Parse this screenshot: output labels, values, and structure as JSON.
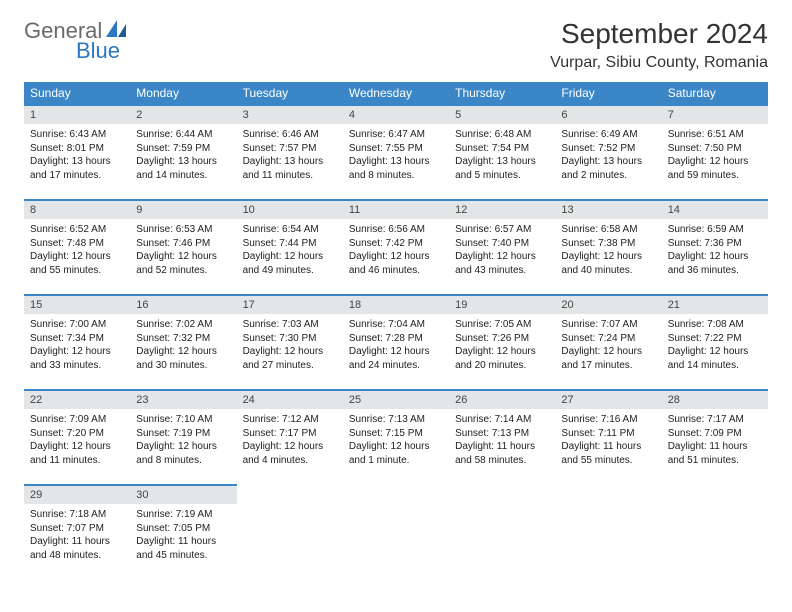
{
  "logo": {
    "text1": "General",
    "text2": "Blue",
    "color_general": "#6a6a6a",
    "color_blue": "#2a78c2"
  },
  "header": {
    "month_title": "September 2024",
    "location": "Vurpar, Sibiu County, Romania"
  },
  "style": {
    "header_bg": "#3b86c6",
    "daynum_bg": "#e3e5e7",
    "page_bg": "#ffffff",
    "border_top": "#3b86c6",
    "title_fontsize": 28,
    "location_fontsize": 16,
    "dayheader_fontsize": 12,
    "cell_fontsize": 10
  },
  "day_names": [
    "Sunday",
    "Monday",
    "Tuesday",
    "Wednesday",
    "Thursday",
    "Friday",
    "Saturday"
  ],
  "weeks": [
    [
      {
        "day": "1",
        "sunrise": "6:43 AM",
        "sunset": "8:01 PM",
        "daylight": "13 hours and 17 minutes."
      },
      {
        "day": "2",
        "sunrise": "6:44 AM",
        "sunset": "7:59 PM",
        "daylight": "13 hours and 14 minutes."
      },
      {
        "day": "3",
        "sunrise": "6:46 AM",
        "sunset": "7:57 PM",
        "daylight": "13 hours and 11 minutes."
      },
      {
        "day": "4",
        "sunrise": "6:47 AM",
        "sunset": "7:55 PM",
        "daylight": "13 hours and 8 minutes."
      },
      {
        "day": "5",
        "sunrise": "6:48 AM",
        "sunset": "7:54 PM",
        "daylight": "13 hours and 5 minutes."
      },
      {
        "day": "6",
        "sunrise": "6:49 AM",
        "sunset": "7:52 PM",
        "daylight": "13 hours and 2 minutes."
      },
      {
        "day": "7",
        "sunrise": "6:51 AM",
        "sunset": "7:50 PM",
        "daylight": "12 hours and 59 minutes."
      }
    ],
    [
      {
        "day": "8",
        "sunrise": "6:52 AM",
        "sunset": "7:48 PM",
        "daylight": "12 hours and 55 minutes."
      },
      {
        "day": "9",
        "sunrise": "6:53 AM",
        "sunset": "7:46 PM",
        "daylight": "12 hours and 52 minutes."
      },
      {
        "day": "10",
        "sunrise": "6:54 AM",
        "sunset": "7:44 PM",
        "daylight": "12 hours and 49 minutes."
      },
      {
        "day": "11",
        "sunrise": "6:56 AM",
        "sunset": "7:42 PM",
        "daylight": "12 hours and 46 minutes."
      },
      {
        "day": "12",
        "sunrise": "6:57 AM",
        "sunset": "7:40 PM",
        "daylight": "12 hours and 43 minutes."
      },
      {
        "day": "13",
        "sunrise": "6:58 AM",
        "sunset": "7:38 PM",
        "daylight": "12 hours and 40 minutes."
      },
      {
        "day": "14",
        "sunrise": "6:59 AM",
        "sunset": "7:36 PM",
        "daylight": "12 hours and 36 minutes."
      }
    ],
    [
      {
        "day": "15",
        "sunrise": "7:00 AM",
        "sunset": "7:34 PM",
        "daylight": "12 hours and 33 minutes."
      },
      {
        "day": "16",
        "sunrise": "7:02 AM",
        "sunset": "7:32 PM",
        "daylight": "12 hours and 30 minutes."
      },
      {
        "day": "17",
        "sunrise": "7:03 AM",
        "sunset": "7:30 PM",
        "daylight": "12 hours and 27 minutes."
      },
      {
        "day": "18",
        "sunrise": "7:04 AM",
        "sunset": "7:28 PM",
        "daylight": "12 hours and 24 minutes."
      },
      {
        "day": "19",
        "sunrise": "7:05 AM",
        "sunset": "7:26 PM",
        "daylight": "12 hours and 20 minutes."
      },
      {
        "day": "20",
        "sunrise": "7:07 AM",
        "sunset": "7:24 PM",
        "daylight": "12 hours and 17 minutes."
      },
      {
        "day": "21",
        "sunrise": "7:08 AM",
        "sunset": "7:22 PM",
        "daylight": "12 hours and 14 minutes."
      }
    ],
    [
      {
        "day": "22",
        "sunrise": "7:09 AM",
        "sunset": "7:20 PM",
        "daylight": "12 hours and 11 minutes."
      },
      {
        "day": "23",
        "sunrise": "7:10 AM",
        "sunset": "7:19 PM",
        "daylight": "12 hours and 8 minutes."
      },
      {
        "day": "24",
        "sunrise": "7:12 AM",
        "sunset": "7:17 PM",
        "daylight": "12 hours and 4 minutes."
      },
      {
        "day": "25",
        "sunrise": "7:13 AM",
        "sunset": "7:15 PM",
        "daylight": "12 hours and 1 minute."
      },
      {
        "day": "26",
        "sunrise": "7:14 AM",
        "sunset": "7:13 PM",
        "daylight": "11 hours and 58 minutes."
      },
      {
        "day": "27",
        "sunrise": "7:16 AM",
        "sunset": "7:11 PM",
        "daylight": "11 hours and 55 minutes."
      },
      {
        "day": "28",
        "sunrise": "7:17 AM",
        "sunset": "7:09 PM",
        "daylight": "11 hours and 51 minutes."
      }
    ],
    [
      {
        "day": "29",
        "sunrise": "7:18 AM",
        "sunset": "7:07 PM",
        "daylight": "11 hours and 48 minutes."
      },
      {
        "day": "30",
        "sunrise": "7:19 AM",
        "sunset": "7:05 PM",
        "daylight": "11 hours and 45 minutes."
      },
      null,
      null,
      null,
      null,
      null
    ]
  ],
  "labels": {
    "sunrise_prefix": "Sunrise: ",
    "sunset_prefix": "Sunset: ",
    "daylight_prefix": "Daylight: "
  }
}
